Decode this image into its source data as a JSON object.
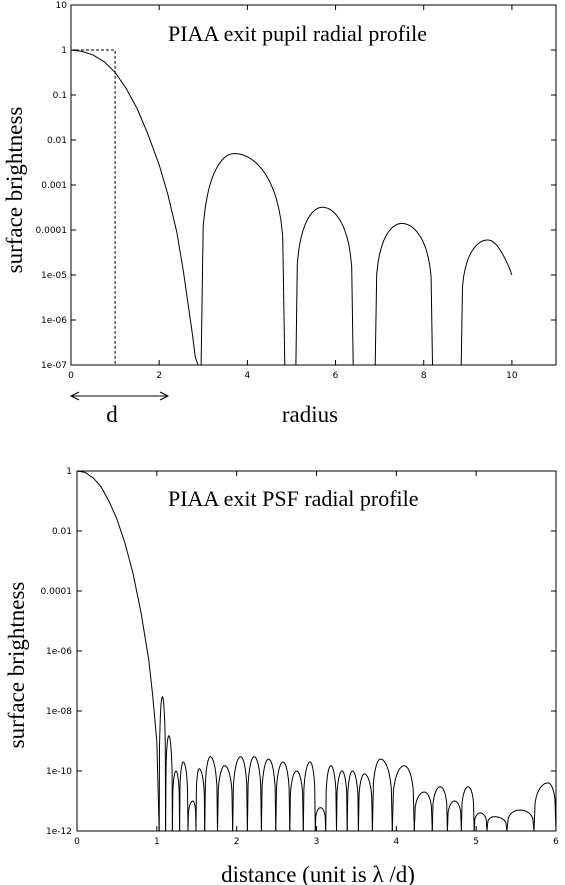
{
  "chart_data": [
    {
      "type": "line",
      "title": "PIAA exit pupil radial profile",
      "xlabel": "radius",
      "ylabel": "surface brightness",
      "scale_y": "log",
      "xlim": [
        0,
        11
      ],
      "ylim": [
        1e-07,
        10
      ],
      "x_ticks": [
        "0",
        "2",
        "4",
        "6",
        "8",
        "10"
      ],
      "y_ticks": [
        "1e-07",
        "1e-06",
        "1e-05",
        "0.0001",
        "0.001",
        "0.01",
        "0.1",
        "1",
        "10"
      ],
      "annotation": {
        "label": "d",
        "arrow_from": 0,
        "arrow_to": 2.2,
        "dashed_box_x": 1,
        "dashed_box_y": 1
      },
      "series": [
        {
          "x": [
            0,
            0.25,
            0.5,
            0.75,
            1.0,
            1.25,
            1.5,
            1.75,
            2.0,
            2.2,
            2.4,
            2.55,
            2.65,
            2.75,
            2.82,
            2.88
          ],
          "y": [
            1,
            0.93,
            0.78,
            0.55,
            0.32,
            0.14,
            0.05,
            0.013,
            0.0028,
            0.0006,
            9e-05,
            1.2e-05,
            2.5e-06,
            5e-07,
            1.5e-07,
            1e-07
          ]
        },
        {
          "lobes": [
            {
              "start": 2.95,
              "peak_x": 3.7,
              "peak_y": 0.005,
              "end": 4.85
            },
            {
              "start": 5.1,
              "peak_x": 5.7,
              "peak_y": 0.00032,
              "end": 6.4
            },
            {
              "start": 6.9,
              "peak_x": 7.5,
              "peak_y": 0.00014,
              "end": 8.2
            },
            {
              "start": 8.85,
              "peak_x": 9.45,
              "peak_y": 6e-05,
              "end": 10.0,
              "end_y": 1e-05
            }
          ]
        }
      ]
    },
    {
      "type": "line",
      "title": "PIAA exit PSF radial profile",
      "xlabel": "distance (unit is λ /d)",
      "ylabel": "surface brightness",
      "scale_y": "log",
      "xlim": [
        0,
        6
      ],
      "ylim": [
        1e-12,
        1
      ],
      "x_ticks": [
        "0",
        "1",
        "2",
        "3",
        "4",
        "5",
        "6"
      ],
      "y_ticks": [
        "1e-12",
        "1e-10",
        "1e-08",
        "1e-06",
        "0.0001",
        "0.01",
        "1"
      ],
      "series": [
        {
          "main_lobe": {
            "x": [
              0,
              0.1,
              0.2,
              0.3,
              0.4,
              0.5,
              0.6,
              0.7,
              0.8,
              0.9,
              0.95,
              1.0,
              1.02,
              1.03
            ],
            "y": [
              1,
              0.9,
              0.6,
              0.3,
              0.1,
              0.025,
              0.004,
              0.0004,
              2e-05,
              5e-07,
              3e-08,
              1e-09,
              1e-11,
              1e-12
            ]
          },
          "sidelobe_peaks": [
            {
              "x": 1.07,
              "y": 3e-08
            },
            {
              "x": 1.15,
              "y": 1.5e-09
            },
            {
              "x": 1.24,
              "y": 1e-10
            },
            {
              "x": 1.33,
              "y": 2e-10
            },
            {
              "x": 1.45,
              "y": 1e-11
            },
            {
              "x": 1.53,
              "y": 1.2e-10
            },
            {
              "x": 1.67,
              "y": 3e-10
            },
            {
              "x": 1.85,
              "y": 1.5e-10
            },
            {
              "x": 2.05,
              "y": 3e-10
            },
            {
              "x": 2.22,
              "y": 3e-10
            },
            {
              "x": 2.4,
              "y": 2.5e-10
            },
            {
              "x": 2.58,
              "y": 2e-10
            },
            {
              "x": 2.75,
              "y": 1e-10
            },
            {
              "x": 2.92,
              "y": 2e-10
            },
            {
              "x": 3.05,
              "y": 6e-12
            },
            {
              "x": 3.18,
              "y": 1.5e-10
            },
            {
              "x": 3.32,
              "y": 1e-10
            },
            {
              "x": 3.45,
              "y": 1e-10
            },
            {
              "x": 3.6,
              "y": 8e-11
            },
            {
              "x": 3.8,
              "y": 2.5e-10
            },
            {
              "x": 4.1,
              "y": 1.5e-10
            },
            {
              "x": 4.35,
              "y": 2e-11
            },
            {
              "x": 4.55,
              "y": 3e-11
            },
            {
              "x": 4.73,
              "y": 1e-11
            },
            {
              "x": 4.9,
              "y": 3e-11
            },
            {
              "x": 5.05,
              "y": 4e-12
            },
            {
              "x": 5.22,
              "y": 3e-12
            },
            {
              "x": 5.55,
              "y": 5e-12
            },
            {
              "x": 5.9,
              "y": 4e-11
            }
          ]
        }
      ]
    }
  ]
}
